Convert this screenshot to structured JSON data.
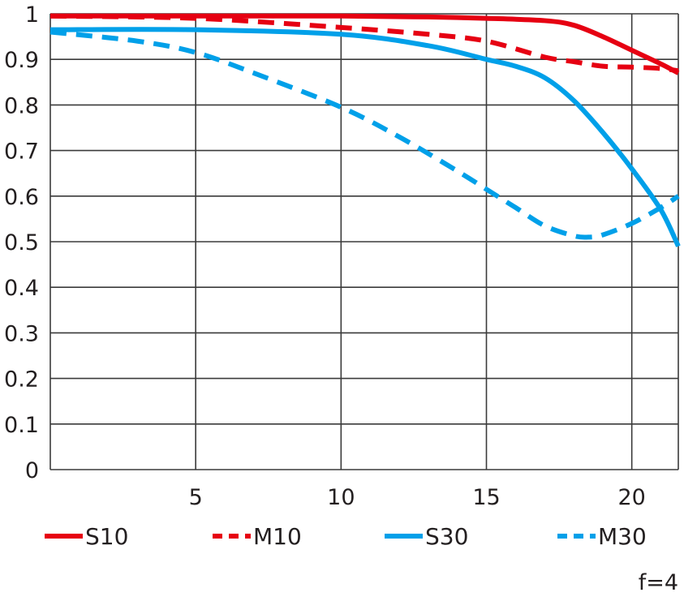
{
  "chart_data": {
    "type": "line",
    "title": "",
    "xlabel": "",
    "ylabel": "",
    "annotation": "f=4",
    "xlim": [
      0,
      21.6
    ],
    "ylim": [
      0,
      1
    ],
    "grid": true,
    "legend_placement": "bottom",
    "x_ticks": [
      "5",
      "10",
      "15",
      "20"
    ],
    "y_ticks": [
      "0",
      "0.1",
      "0.2",
      "0.3",
      "0.4",
      "0.5",
      "0.6",
      "0.7",
      "0.8",
      "0.9",
      "1"
    ],
    "series": [
      {
        "name": "S10",
        "color": "#e60012",
        "dash": false,
        "x": [
          0,
          5,
          10,
          13,
          15,
          17,
          18,
          19,
          20,
          21,
          21.6
        ],
        "y": [
          0.995,
          0.995,
          0.995,
          0.993,
          0.99,
          0.985,
          0.975,
          0.95,
          0.92,
          0.89,
          0.87
        ]
      },
      {
        "name": "M10",
        "color": "#e60012",
        "dash": true,
        "x": [
          0,
          5,
          10,
          13,
          15,
          17,
          18,
          19,
          20,
          21,
          21.6
        ],
        "y": [
          0.995,
          0.99,
          0.97,
          0.955,
          0.94,
          0.905,
          0.895,
          0.885,
          0.883,
          0.88,
          0.875
        ]
      },
      {
        "name": "S30",
        "color": "#00a0e9",
        "dash": false,
        "x": [
          0,
          5,
          10,
          13,
          15,
          16,
          17,
          18,
          19,
          20,
          21,
          21.6
        ],
        "y": [
          0.965,
          0.965,
          0.955,
          0.93,
          0.9,
          0.885,
          0.86,
          0.81,
          0.74,
          0.66,
          0.57,
          0.49
        ]
      },
      {
        "name": "M30",
        "color": "#00a0e9",
        "dash": true,
        "x": [
          0,
          3,
          5,
          7,
          10,
          12,
          14,
          15,
          16,
          17,
          18,
          18.5,
          19,
          20,
          21,
          21.6
        ],
        "y": [
          0.96,
          0.94,
          0.915,
          0.87,
          0.795,
          0.73,
          0.655,
          0.615,
          0.575,
          0.535,
          0.513,
          0.51,
          0.515,
          0.54,
          0.575,
          0.6
        ]
      }
    ]
  }
}
